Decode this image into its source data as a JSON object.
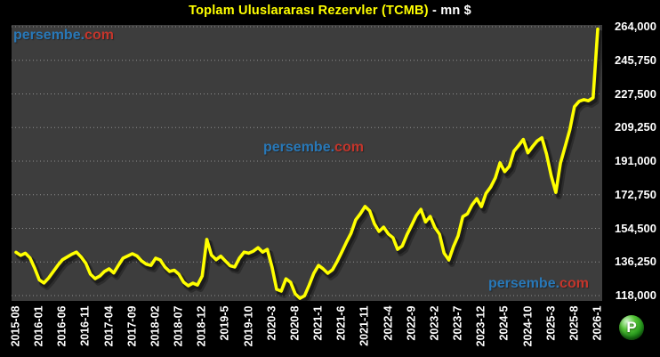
{
  "title": {
    "main": "Toplam Uluslararası Rezervler (TCMB)",
    "suffix": " - mn $"
  },
  "watermark": {
    "name": "persembe.",
    "tld": "com"
  },
  "logo": {
    "letter": "P"
  },
  "colors": {
    "background": "#000000",
    "plot_background": "#3d3d3d",
    "line": "#ffff00",
    "grid": "#b4b4b4",
    "axis_text": "#ffffff",
    "title_main": "#ffff00",
    "title_suffix": "#ffffff",
    "watermark_name": "#2878b8",
    "watermark_tld": "#c4352b",
    "logo_green": "#21921a"
  },
  "chart_data": {
    "type": "line",
    "title": "Toplam Uluslararası Rezervler (TCMB) - mn $",
    "unit": "mn $",
    "frequency": "monthly",
    "start_month": "2015-08",
    "end_month": "2026-01",
    "grid": "horizontal-dotted",
    "legend": "none",
    "ylim": [
      118000,
      264000
    ],
    "y_step": 18250,
    "y_ticks": [
      264000,
      245750,
      227500,
      209250,
      191000,
      172750,
      154500,
      136250,
      118000
    ],
    "y_tick_labels": [
      "264,000",
      "245,750",
      "227,500",
      "209,250",
      "191,000",
      "172,750",
      "154,500",
      "136,250",
      "118,000"
    ],
    "x_tick_labels": [
      "2015-08",
      "2016-01",
      "2016-06",
      "2016-11",
      "2017-04",
      "2017-09",
      "2018-02",
      "2018-07",
      "2018-12",
      "2019-5",
      "2019-10",
      "2020-3",
      "2020-8",
      "2021-1",
      "2021-6",
      "2021-11",
      "2022-4",
      "2022-9",
      "2023-2",
      "2023-7",
      "2023-12",
      "2024-5",
      "2024-10",
      "2025-3",
      "2025-8",
      "2026-1"
    ],
    "x_tick_every_n_months": 5,
    "series": [
      {
        "name": "Toplam Uluslararası Rezervler (TCMB)",
        "color": "#ffff00",
        "values": [
          141500,
          139800,
          141000,
          138500,
          133000,
          126500,
          124800,
          127500,
          131000,
          134500,
          137500,
          139000,
          140500,
          141600,
          139000,
          135500,
          129600,
          127200,
          128600,
          131100,
          132500,
          130300,
          134400,
          138300,
          139500,
          140700,
          139500,
          136800,
          135000,
          134400,
          138300,
          137300,
          133500,
          131100,
          131800,
          129600,
          125300,
          123300,
          124700,
          123700,
          128600,
          148500,
          140000,
          137500,
          139400,
          136800,
          134200,
          133500,
          138300,
          141600,
          141000,
          142100,
          144000,
          141600,
          143100,
          133500,
          121400,
          120400,
          127100,
          125200,
          118900,
          116500,
          117900,
          123700,
          130100,
          134400,
          132500,
          130100,
          132000,
          136500,
          141600,
          147000,
          151900,
          159100,
          162500,
          166400,
          164000,
          157000,
          152800,
          155200,
          151500,
          149400,
          143100,
          145000,
          151000,
          156100,
          161400,
          164800,
          158000,
          161000,
          155000,
          151300,
          141000,
          137300,
          144600,
          150400,
          160900,
          162400,
          167200,
          170600,
          166300,
          173500,
          177000,
          181900,
          190100,
          185300,
          188200,
          196400,
          199500,
          202800,
          195500,
          199000,
          202000,
          203700,
          194900,
          183000,
          174000,
          190000,
          199000,
          208000,
          220600,
          223500,
          224400,
          223800,
          225400,
          262700
        ]
      }
    ]
  }
}
